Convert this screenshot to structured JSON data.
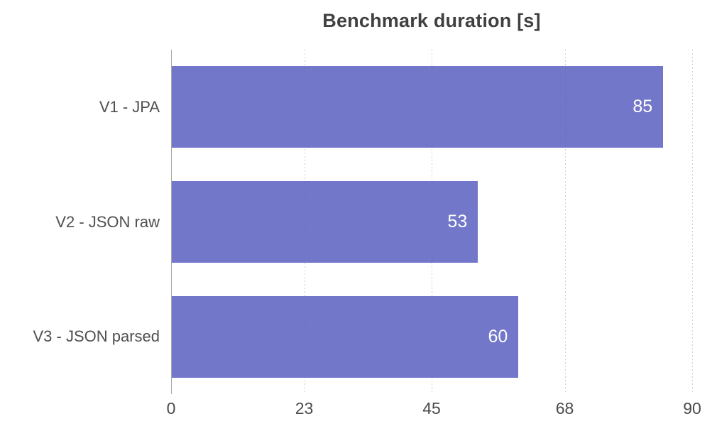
{
  "chart": {
    "title": "Benchmark duration [s]"
  },
  "chart_data": {
    "type": "bar",
    "orientation": "horizontal",
    "title": "Benchmark duration [s]",
    "categories": [
      "V1 - JPA",
      "V2 - JSON raw",
      "V3 - JSON parsed"
    ],
    "values": [
      85,
      53,
      60
    ],
    "data_labels": [
      "85",
      "53",
      "60"
    ],
    "xlabel": "",
    "ylabel": "",
    "xlim": [
      0,
      90
    ],
    "xticks": [
      0,
      23,
      45,
      68,
      90
    ],
    "grid": "vertical-dotted",
    "legend": "none",
    "bar_color": "#7277c9",
    "value_label_color": "#ffffff",
    "title_color": "#404040",
    "axis_color": "#a6a6a6",
    "tick_label_color": "#4a4a4a"
  }
}
